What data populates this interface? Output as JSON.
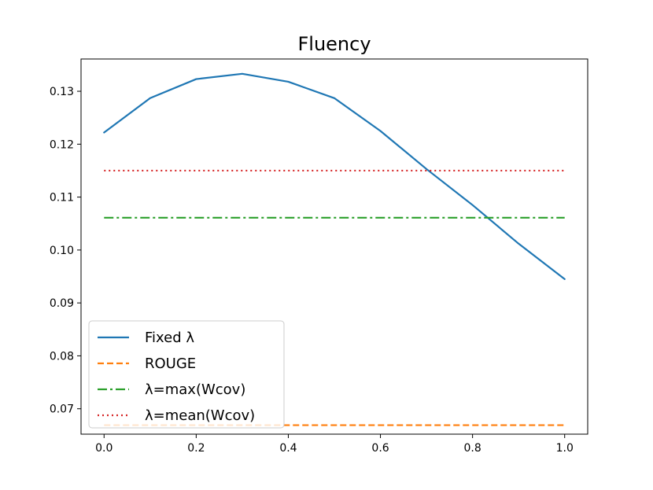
{
  "chart_data": {
    "type": "line",
    "title": "Fluency",
    "xlabel": "",
    "ylabel": "",
    "xlim": [
      -0.05,
      1.05
    ],
    "ylim": [
      0.0652,
      0.1361
    ],
    "xticks": [
      0.0,
      0.2,
      0.4,
      0.6,
      0.8,
      1.0
    ],
    "xtick_labels": [
      "0.0",
      "0.2",
      "0.4",
      "0.6",
      "0.8",
      "1.0"
    ],
    "yticks": [
      0.07,
      0.08,
      0.09,
      0.1,
      0.11,
      0.12,
      0.13
    ],
    "ytick_labels": [
      "0.07",
      "0.08",
      "0.09",
      "0.10",
      "0.11",
      "0.12",
      "0.13"
    ],
    "grid": false,
    "legend_position": "lower-left",
    "series": [
      {
        "name": "Fixed λ",
        "color": "#1f77b4",
        "style": "solid",
        "x": [
          0.0,
          0.1,
          0.2,
          0.3,
          0.4,
          0.5,
          0.6,
          0.7,
          0.8,
          0.9,
          1.0
        ],
        "y": [
          0.1222,
          0.1287,
          0.1323,
          0.1333,
          0.1318,
          0.1287,
          0.1225,
          0.1153,
          0.1085,
          0.1012,
          0.0945
        ]
      },
      {
        "name": "ROUGE",
        "color": "#ff7f0e",
        "style": "dashed",
        "x": [
          0.0,
          1.0
        ],
        "y": [
          0.0669,
          0.0669
        ]
      },
      {
        "name": "λ=max(Wcov)",
        "color": "#2ca02c",
        "style": "dashdot",
        "x": [
          0.0,
          1.0
        ],
        "y": [
          0.1061,
          0.1061
        ]
      },
      {
        "name": "λ=mean(Wcov)",
        "color": "#d62728",
        "style": "dotted",
        "x": [
          0.0,
          1.0
        ],
        "y": [
          0.115,
          0.115
        ]
      }
    ]
  }
}
